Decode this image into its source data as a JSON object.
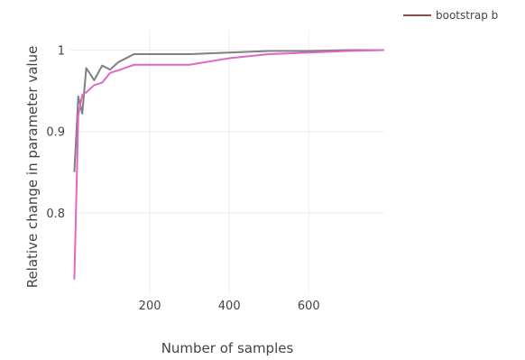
{
  "chart_data": {
    "type": "line",
    "title": "",
    "xlabel": "Number of samples",
    "ylabel": "Relative change in parameter value",
    "xlim": [
      0,
      790
    ],
    "ylim": [
      0.7,
      1.025
    ],
    "xticks": [
      200,
      400,
      600
    ],
    "xtick_labels": [
      "200",
      "400",
      "600"
    ],
    "yticks": [
      0.8,
      0.9,
      1.0
    ],
    "ytick_labels": [
      "0.8",
      "0.9",
      "1"
    ],
    "grid": true,
    "legend": {
      "placement": "top-right",
      "visible_entries": [
        "bootstrap b"
      ]
    },
    "series": [
      {
        "name": "bootstrap b",
        "color": "#8B4A4A",
        "x": [],
        "y": []
      },
      {
        "color": "#808080",
        "x": [
          10,
          20,
          30,
          40,
          60,
          80,
          100,
          120,
          160,
          200,
          300,
          400,
          500,
          600,
          700,
          790
        ],
        "y": [
          0.85,
          0.943,
          0.922,
          0.978,
          0.963,
          0.981,
          0.976,
          0.985,
          0.995,
          0.995,
          0.995,
          0.997,
          0.999,
          0.999,
          1.0,
          1.0
        ]
      },
      {
        "color": "#E066C6",
        "x": [
          10,
          20,
          30,
          40,
          60,
          80,
          100,
          120,
          160,
          200,
          300,
          400,
          500,
          600,
          700,
          790
        ],
        "y": [
          0.718,
          0.92,
          0.945,
          0.948,
          0.957,
          0.96,
          0.972,
          0.975,
          0.982,
          0.982,
          0.982,
          0.99,
          0.995,
          0.997,
          0.999,
          1.0
        ]
      }
    ]
  }
}
